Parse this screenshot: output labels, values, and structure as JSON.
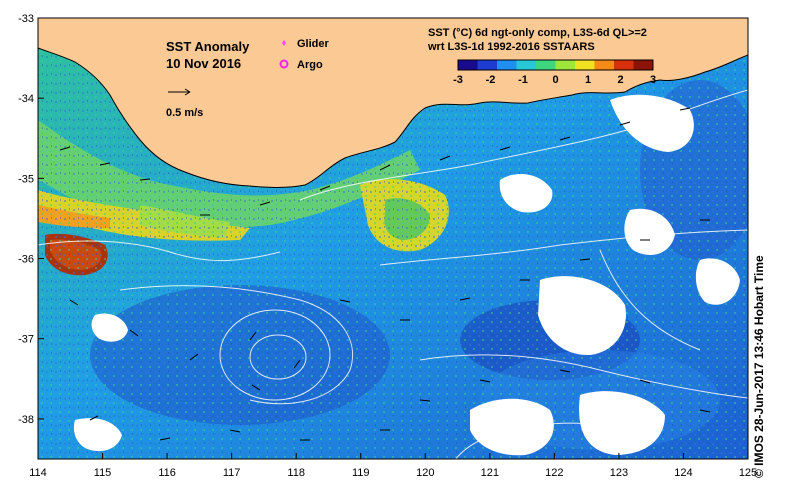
{
  "map": {
    "title": "SST Anomaly",
    "date": "10 Nov 2016",
    "scale_label": "0.5 m/s",
    "legend": {
      "glider": "Glider",
      "argo": "Argo"
    },
    "colors": {
      "land": "#fbc994",
      "glider": "#ff44ff",
      "argo": "#ee22ee"
    },
    "product": {
      "line1": "SST (°C) 6d ngt-only comp, L3S-6d QL>=2",
      "line2": "wrt L3S-1d 1992-2016 SSTAARS"
    },
    "colorbar": {
      "ticks": [
        "-3",
        "-2",
        "-1",
        "0",
        "1",
        "2",
        "3"
      ],
      "colors": [
        "#1a0a8c",
        "#1e3cd2",
        "#1f8ef0",
        "#27c8d8",
        "#3ed67e",
        "#9ee63a",
        "#f0e21e",
        "#f48a18",
        "#d8300c",
        "#8a1406"
      ]
    },
    "axes": {
      "lon_ticks": [
        "114",
        "115",
        "116",
        "117",
        "118",
        "119",
        "120",
        "121",
        "122",
        "123",
        "124",
        "125"
      ],
      "lat_ticks": [
        "-33",
        "-34",
        "-35",
        "-36",
        "-37",
        "-38"
      ],
      "lon_range": [
        114,
        125
      ],
      "lat_range": [
        -38.5,
        -33
      ]
    },
    "footer": "© IMOS 28-Jun-2017 13:46 Hobart Time"
  }
}
